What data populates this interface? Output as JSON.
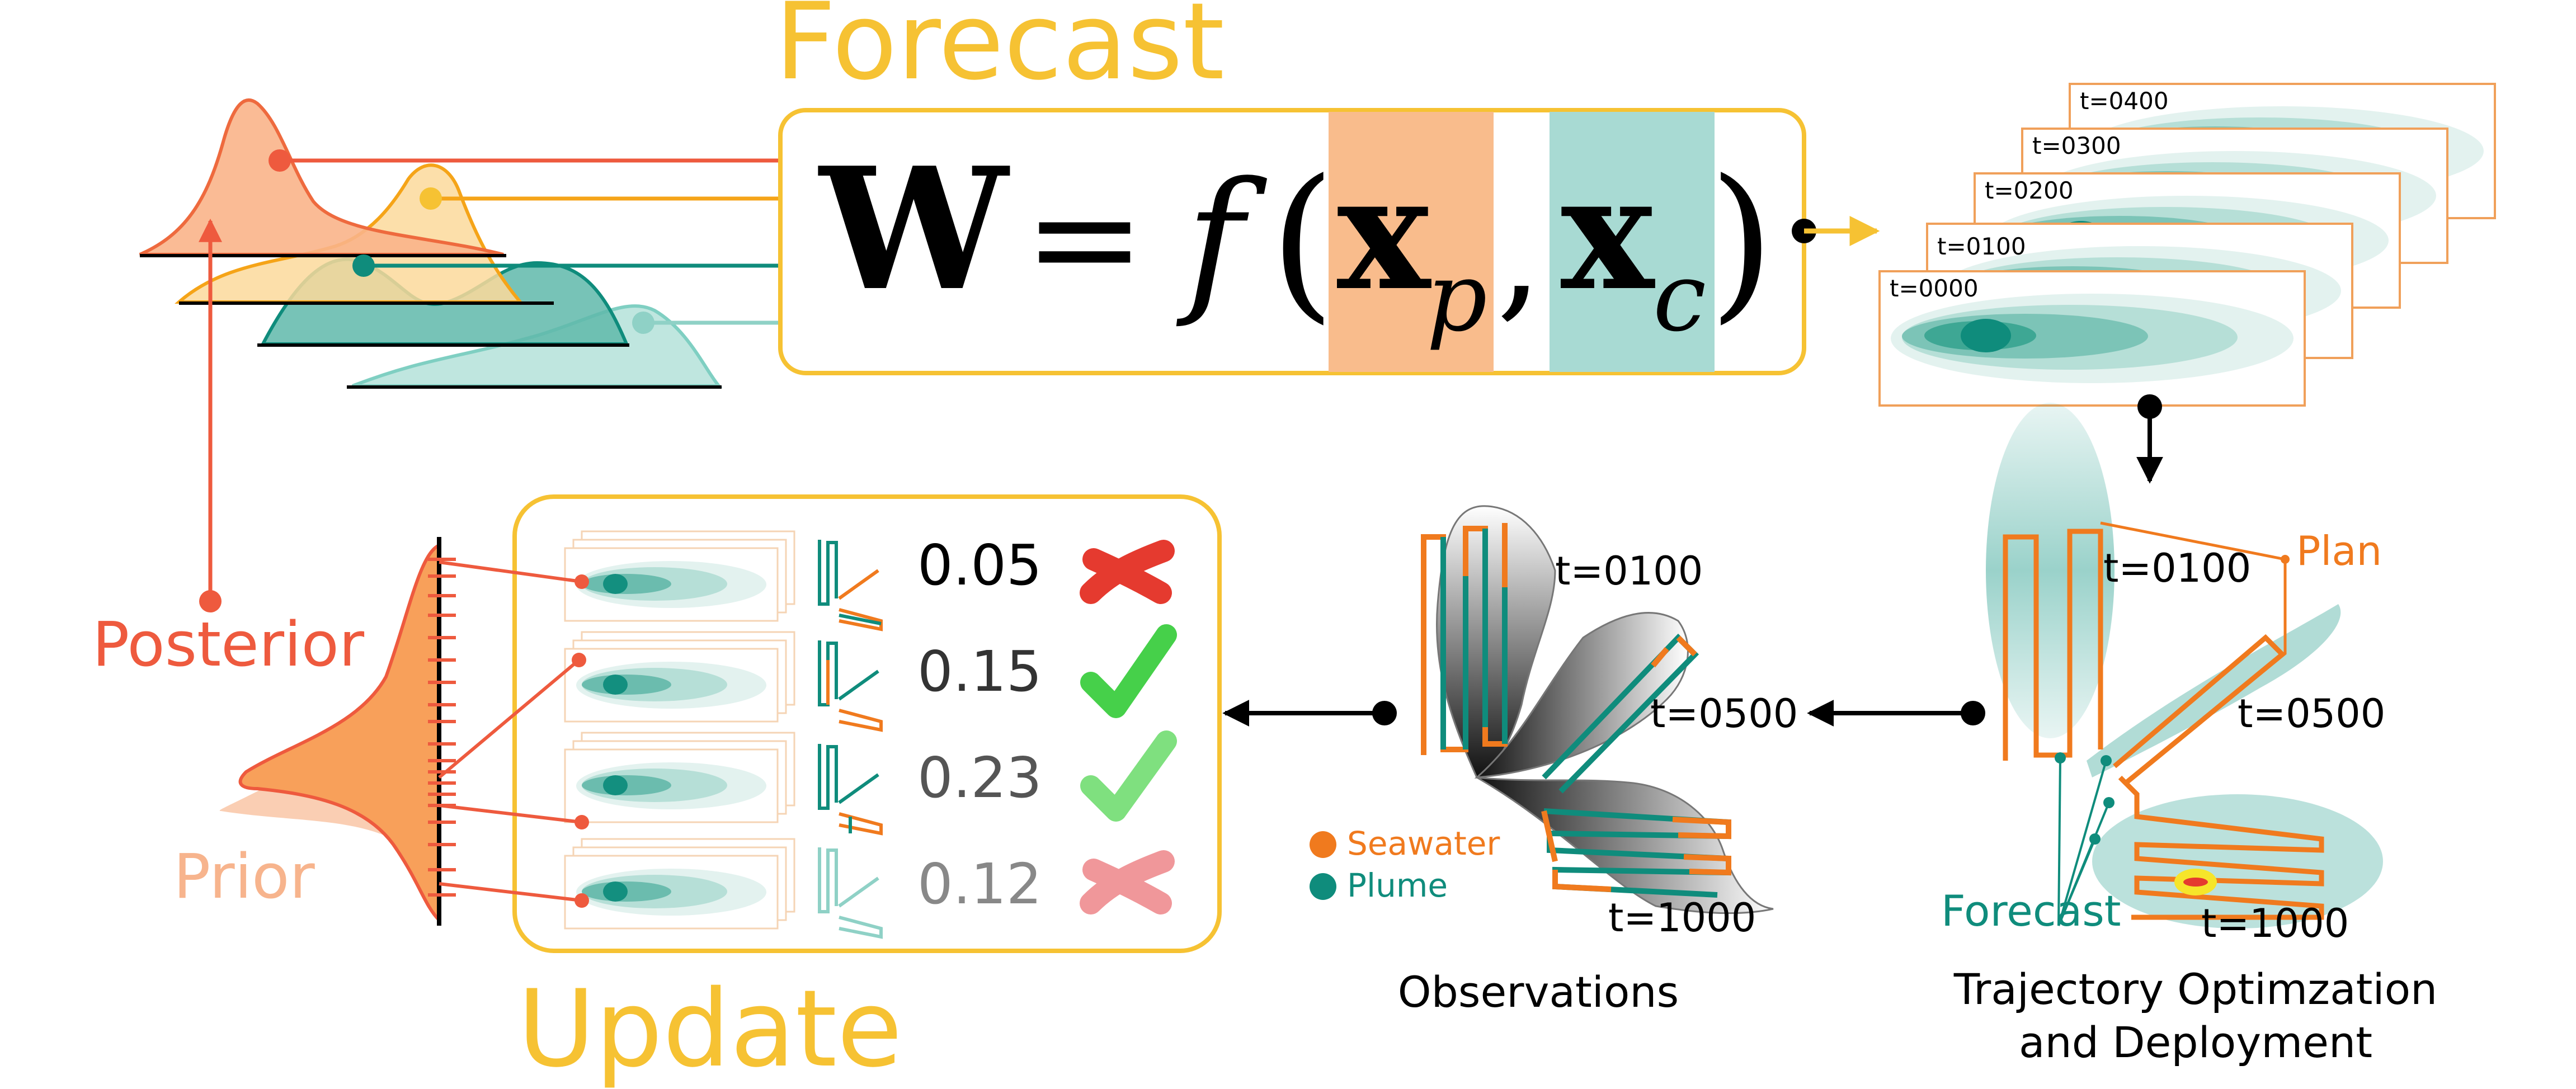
{
  "colors": {
    "forecast": "#f6c233",
    "posterior": "#ee5a3e",
    "prior": "#f7b48d",
    "orange": "#f07a1e",
    "teal": "#0f8c7c",
    "teal_light": "#8fd1c6",
    "param_p": "#f9bc8c",
    "param_c": "#a8dad3",
    "good": "#46d04a",
    "bad": "#e53a2f",
    "bad_faded": "#f0979a",
    "good_faded": "#7fe07f"
  },
  "forecast": {
    "title": "Forecast",
    "equation": {
      "lhs": "W",
      "eq": "=",
      "func": "f",
      "open_paren": "(",
      "close_paren": ")",
      "comma": ",",
      "arg1_base": "x",
      "arg1_sub": "p",
      "arg2_base": "x",
      "arg2_sub": "c"
    }
  },
  "forecast_frames": [
    "t=0000",
    "t=0100",
    "t=0200",
    "t=0300",
    "t=0400"
  ],
  "update": {
    "title": "Update",
    "rows": [
      {
        "weight": "0.05",
        "verdict": "reject",
        "mark": "cross-icon"
      },
      {
        "weight": "0.15",
        "verdict": "accept",
        "mark": "check-icon"
      },
      {
        "weight": "0.23",
        "verdict": "accept",
        "mark": "check-icon"
      },
      {
        "weight": "0.12",
        "verdict": "reject",
        "mark": "cross-icon"
      }
    ]
  },
  "distributions": {
    "posterior_label": "Posterior",
    "prior_label": "Prior"
  },
  "observations": {
    "caption": "Observations",
    "times": [
      "t=0100",
      "t=0500",
      "t=1000"
    ],
    "legend": [
      {
        "label": "Seawater",
        "color": "#f07a1e"
      },
      {
        "label": "Plume",
        "color": "#0f8c7c"
      }
    ]
  },
  "trajectory": {
    "caption_line1": "Trajectory Optimzation",
    "caption_line2": "and Deployment",
    "plan_label": "Plan",
    "forecast_label": "Forecast",
    "times": [
      "t=0100",
      "t=0500",
      "t=1000"
    ]
  }
}
